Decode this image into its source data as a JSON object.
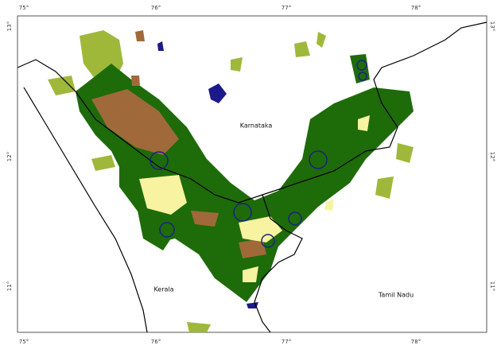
{
  "graticule": {
    "longitudes": [
      "75°",
      "76°",
      "77°",
      "78°"
    ],
    "latitudes": [
      "13°",
      "12°",
      "11°"
    ]
  },
  "regions": [
    "Karnataka",
    "Kerala",
    "Tamil Nadu"
  ]
}
